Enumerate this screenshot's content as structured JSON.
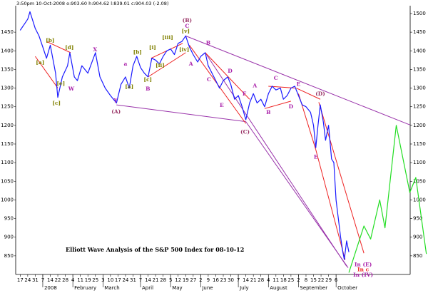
{
  "chart_data": {
    "type": "line",
    "header": "3:50pm 10-Oct-2008 o:903.60 h:904.62 l:839.01 c:904.03 (-2.08)",
    "title": "Elliott Wave Analysis of the S&P 500 Index for 08-10-12",
    "xlim": [
      -0.6,
      51.85
    ],
    "ylim": [
      800,
      1521
    ],
    "yticks": [
      850,
      900,
      950,
      1000,
      1050,
      1100,
      1150,
      1200,
      1250,
      1300,
      1350,
      1400,
      1450,
      1500
    ],
    "left_yticks": [
      850,
      900,
      950,
      1000,
      1050,
      1100,
      1150,
      1200,
      1250,
      1300,
      1350,
      1400,
      1450
    ],
    "xticks": [
      {
        "value": 0,
        "label": "17"
      },
      {
        "value": 1,
        "label": "24"
      },
      {
        "value": 2,
        "label": "31"
      },
      {
        "value": 3,
        "label": "7"
      },
      {
        "value": 4,
        "label": "14"
      },
      {
        "value": 5,
        "label": "22"
      },
      {
        "value": 6,
        "label": "28"
      },
      {
        "value": 7,
        "label": "4"
      },
      {
        "value": 8,
        "label": "11"
      },
      {
        "value": 9,
        "label": "19"
      },
      {
        "value": 10,
        "label": "25"
      },
      {
        "value": 11,
        "label": "3"
      },
      {
        "value": 12,
        "label": "10"
      },
      {
        "value": 13,
        "label": "17"
      },
      {
        "value": 14,
        "label": "24"
      },
      {
        "value": 15,
        "label": "31"
      },
      {
        "value": 16,
        "label": "7"
      },
      {
        "value": 17,
        "label": "14"
      },
      {
        "value": 18,
        "label": "21"
      },
      {
        "value": 19,
        "label": "28"
      },
      {
        "value": 20,
        "label": "5"
      },
      {
        "value": 21,
        "label": "12"
      },
      {
        "value": 22,
        "label": "19"
      },
      {
        "value": 23,
        "label": "27"
      },
      {
        "value": 24,
        "label": "2"
      },
      {
        "value": 25,
        "label": "9"
      },
      {
        "value": 26,
        "label": "16"
      },
      {
        "value": 27,
        "label": "23"
      },
      {
        "value": 28,
        "label": "30"
      },
      {
        "value": 29,
        "label": "7"
      },
      {
        "value": 30,
        "label": "14"
      },
      {
        "value": 31,
        "label": "21"
      },
      {
        "value": 32,
        "label": "28"
      },
      {
        "value": 33,
        "label": "4"
      },
      {
        "value": 34,
        "label": "11"
      },
      {
        "value": 35,
        "label": "18"
      },
      {
        "value": 36,
        "label": "25"
      },
      {
        "value": 37,
        "label": "2"
      },
      {
        "value": 38,
        "label": "8"
      },
      {
        "value": 39,
        "label": "15"
      },
      {
        "value": 40,
        "label": "22"
      },
      {
        "value": 41,
        "label": "29"
      },
      {
        "value": 42,
        "label": "6"
      }
    ],
    "month_labels": [
      {
        "value": 3,
        "label": "2008"
      },
      {
        "value": 7,
        "label": "February"
      },
      {
        "value": 11,
        "label": "March"
      },
      {
        "value": 16,
        "label": "April"
      },
      {
        "value": 20,
        "label": "May"
      },
      {
        "value": 24,
        "label": "June"
      },
      {
        "value": 29,
        "label": "July"
      },
      {
        "value": 33,
        "label": "August"
      },
      {
        "value": 37,
        "label": "September"
      },
      {
        "value": 42,
        "label": "October"
      }
    ],
    "series": [
      {
        "color": "#1a1aff",
        "x": [
          0,
          0.5,
          1,
          1.3,
          2,
          2.5,
          3,
          3.5,
          4,
          4.7,
          5,
          5.6,
          6.3,
          6.6,
          7.2,
          7.6,
          8.2,
          9,
          10,
          10.6,
          11.3,
          12,
          12.8,
          13.4,
          14,
          14.5,
          15,
          15.5,
          16,
          16.5,
          17,
          17.5,
          18,
          18.5,
          19,
          19.5,
          20,
          20.5,
          21,
          21.5,
          22,
          22.5,
          23,
          23.6,
          24,
          24.6,
          25,
          25.5,
          26,
          26.5,
          27,
          27.6,
          28,
          28.5,
          29,
          29.5,
          30,
          30.5,
          31,
          31.5,
          32,
          32.5,
          33,
          33.5,
          34,
          34.6,
          35,
          35.5,
          36,
          36.5,
          37,
          37.5,
          38,
          38.6,
          39,
          39.3,
          39.6,
          39.9,
          40.3,
          40.6,
          41,
          41.4,
          41.7,
          42,
          42.3,
          42.6,
          42.9,
          43.1,
          43.4,
          43.7
        ],
        "values": [
          1455,
          1470,
          1485,
          1505,
          1460,
          1440,
          1410,
          1380,
          1415,
          1340,
          1275,
          1330,
          1360,
          1395,
          1330,
          1320,
          1360,
          1340,
          1395,
          1330,
          1300,
          1280,
          1260,
          1310,
          1330,
          1300,
          1360,
          1385,
          1355,
          1340,
          1330,
          1380,
          1375,
          1365,
          1385,
          1400,
          1405,
          1390,
          1420,
          1425,
          1440,
          1410,
          1390,
          1370,
          1385,
          1395,
          1360,
          1340,
          1320,
          1300,
          1320,
          1330,
          1310,
          1270,
          1280,
          1250,
          1215,
          1260,
          1285,
          1260,
          1270,
          1250,
          1285,
          1305,
          1295,
          1300,
          1270,
          1280,
          1300,
          1305,
          1280,
          1255,
          1250,
          1235,
          1200,
          1140,
          1200,
          1255,
          1210,
          1160,
          1200,
          1110,
          1100,
          1000,
          950,
          900,
          860,
          840,
          890,
          860
        ]
      },
      {
        "color": "#22dd22",
        "x": [
          43.7,
          45.7,
          46.6,
          47.8,
          48.5,
          50,
          51.8,
          52.6,
          54
        ],
        "values": [
          805,
          930,
          895,
          1000,
          925,
          1200,
          1020,
          1060,
          855
        ]
      }
    ],
    "trendlines": [
      {
        "color": "#9933aa",
        "x": [
          12.8,
          30
        ],
        "y": [
          1255,
          1210
        ]
      },
      {
        "color": "#9933aa",
        "x": [
          30,
          43.6
        ],
        "y": [
          1210,
          818
        ]
      },
      {
        "color": "#9933aa",
        "x": [
          22,
          51.85
        ],
        "y": [
          1440,
          1201
        ]
      },
      {
        "color": "#9933aa",
        "x": [
          24.6,
          43.4
        ],
        "y": [
          1395,
          822
        ]
      },
      {
        "color": "#ee2222",
        "x": [
          2,
          5
        ],
        "y": [
          1385,
          1300
        ]
      },
      {
        "color": "#ee2222",
        "x": [
          3.5,
          6.7
        ],
        "y": [
          1425,
          1395
        ]
      },
      {
        "color": "#ee2222",
        "x": [
          17,
          22
        ],
        "y": [
          1330,
          1395
        ]
      },
      {
        "color": "#ee2222",
        "x": [
          17.4,
          21.6
        ],
        "y": [
          1380,
          1420
        ]
      },
      {
        "color": "#ee2222",
        "x": [
          22.5,
          30
        ],
        "y": [
          1415,
          1205
        ]
      },
      {
        "color": "#ee2222",
        "x": [
          24.6,
          30.5
        ],
        "y": [
          1395,
          1270
        ]
      },
      {
        "color": "#ee2222",
        "x": [
          33,
          36.5
        ],
        "y": [
          1305,
          1300
        ]
      },
      {
        "color": "#ee2222",
        "x": [
          32.5,
          36
        ],
        "y": [
          1245,
          1265
        ]
      },
      {
        "color": "#ee2222",
        "x": [
          36.7,
          39.9
        ],
        "y": [
          1300,
          1270
        ]
      },
      {
        "color": "#ee2222",
        "x": [
          37,
          39.3
        ],
        "y": [
          1285,
          1135
        ]
      },
      {
        "color": "#ee2222",
        "x": [
          39.7,
          45.7
        ],
        "y": [
          1262,
          857
        ]
      },
      {
        "color": "#ee2222",
        "x": [
          39.3,
          43.2
        ],
        "y": [
          1135,
          840
        ]
      }
    ],
    "wave_labels": [
      {
        "label": "[a]",
        "x": 2.65,
        "y": 1368,
        "color": "#808000"
      },
      {
        "label": "[b]",
        "x": 3.98,
        "y": 1427,
        "color": "#808000"
      },
      {
        "label": "[c]",
        "x": 4.83,
        "y": 1259,
        "color": "#808000"
      },
      {
        "label": "[d]",
        "x": 6.54,
        "y": 1408,
        "color": "#808000"
      },
      {
        "label": "[e]",
        "x": 5.4,
        "y": 1312,
        "color": "#808000"
      },
      {
        "label": "W",
        "x": 6.8,
        "y": 1297,
        "color": "#aa22aa"
      },
      {
        "label": "X",
        "x": 9.95,
        "y": 1402,
        "color": "#aa22aa"
      },
      {
        "label": "Y",
        "x": 12.7,
        "y": 1266,
        "color": "#aa22aa"
      },
      {
        "label": "(A)",
        "x": 12.75,
        "y": 1236,
        "color": "#993366"
      },
      {
        "label": "a",
        "x": 14.0,
        "y": 1364,
        "color": "#aa22aa"
      },
      {
        "label": "[a]",
        "x": 14.5,
        "y": 1303,
        "color": "#808000"
      },
      {
        "label": "[b]",
        "x": 15.6,
        "y": 1396,
        "color": "#808000"
      },
      {
        "label": "[c]",
        "x": 16.97,
        "y": 1322,
        "color": "#808000"
      },
      {
        "label": "B",
        "x": 16.97,
        "y": 1297,
        "color": "#aa22aa"
      },
      {
        "label": "[i]",
        "x": 17.6,
        "y": 1408,
        "color": "#808000"
      },
      {
        "label": "[ii]",
        "x": 18.6,
        "y": 1360,
        "color": "#808000"
      },
      {
        "label": "[iii]",
        "x": 19.6,
        "y": 1435,
        "color": "#808000"
      },
      {
        "label": "[iv]",
        "x": 21.8,
        "y": 1402,
        "color": "#808000"
      },
      {
        "label": "[v]",
        "x": 22.0,
        "y": 1452,
        "color": "#808000"
      },
      {
        "label": "C",
        "x": 22.2,
        "y": 1466,
        "color": "#aa22aa"
      },
      {
        "label": "(B)",
        "x": 22.2,
        "y": 1481,
        "color": "#993366"
      },
      {
        "label": "A",
        "x": 22.7,
        "y": 1364,
        "color": "#aa22aa"
      },
      {
        "label": "B",
        "x": 25.0,
        "y": 1421,
        "color": "#aa22aa"
      },
      {
        "label": "C",
        "x": 25.1,
        "y": 1322,
        "color": "#aa22aa"
      },
      {
        "label": "D",
        "x": 27.9,
        "y": 1345,
        "color": "#aa22aa"
      },
      {
        "label": "E",
        "x": 26.8,
        "y": 1253,
        "color": "#aa22aa"
      },
      {
        "label": "F",
        "x": 29.8,
        "y": 1284,
        "color": "#aa22aa"
      },
      {
        "label": "(C)",
        "x": 29.9,
        "y": 1182,
        "color": "#993366"
      },
      {
        "label": "A",
        "x": 31.2,
        "y": 1306,
        "color": "#aa22aa"
      },
      {
        "label": "B",
        "x": 33.0,
        "y": 1234,
        "color": "#aa22aa"
      },
      {
        "label": "C",
        "x": 34.0,
        "y": 1326,
        "color": "#aa22aa"
      },
      {
        "label": "D",
        "x": 36.0,
        "y": 1249,
        "color": "#aa22aa"
      },
      {
        "label": "E",
        "x": 37.0,
        "y": 1310,
        "color": "#aa22aa"
      },
      {
        "label": "(D)",
        "x": 39.9,
        "y": 1284,
        "color": "#993366"
      },
      {
        "label": "E",
        "x": 39.3,
        "y": 1115,
        "color": "#aa22aa"
      },
      {
        "label": "In (E)",
        "x": 45.6,
        "y": 826,
        "color": "#aa22aa"
      },
      {
        "label": "In c",
        "x": 45.6,
        "y": 812,
        "color": "#ee2222"
      },
      {
        "label": "In (IV)",
        "x": 45.6,
        "y": 798,
        "color": "#aa22aa"
      }
    ]
  }
}
